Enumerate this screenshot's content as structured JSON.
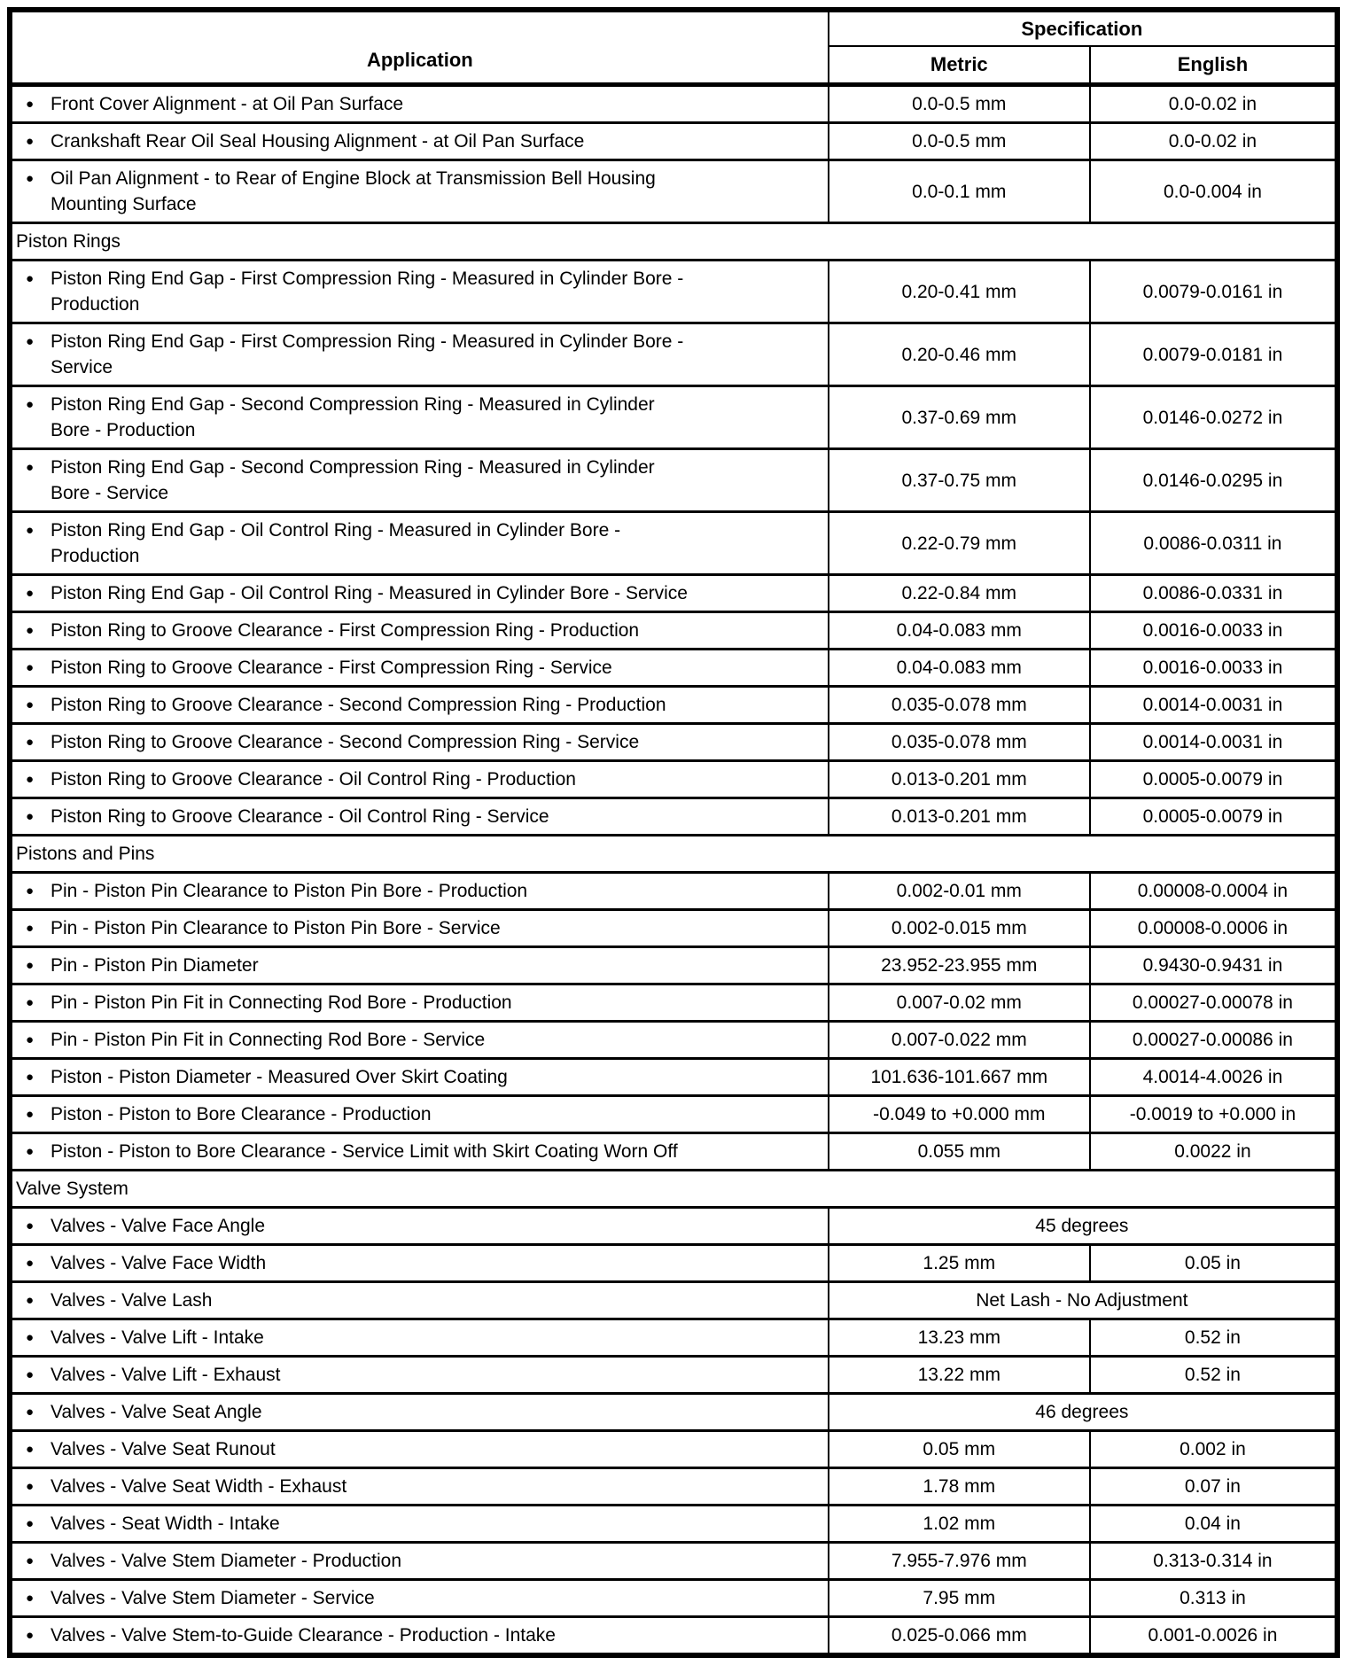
{
  "table": {
    "header": {
      "application": "Application",
      "specification": "Specification",
      "metric": "Metric",
      "english": "English"
    },
    "bullet_icon": "●",
    "rows": [
      {
        "type": "item",
        "label": "Front Cover Alignment - at Oil Pan Surface",
        "metric": "0.0-0.5 mm",
        "english": "0.0-0.02 in"
      },
      {
        "type": "item",
        "label": "Crankshaft Rear Oil Seal Housing Alignment - at Oil Pan Surface",
        "metric": "0.0-0.5 mm",
        "english": "0.0-0.02 in"
      },
      {
        "type": "item",
        "label": "Oil Pan Alignment - to Rear of Engine Block at Transmission Bell Housing\nMounting Surface",
        "metric": "0.0-0.1 mm",
        "english": "0.0-0.004 in"
      },
      {
        "type": "section",
        "label": "Piston Rings"
      },
      {
        "type": "item",
        "label": "Piston Ring End Gap - First Compression Ring - Measured in Cylinder Bore -\nProduction",
        "metric": "0.20-0.41 mm",
        "english": "0.0079-0.0161 in"
      },
      {
        "type": "item",
        "label": "Piston Ring End Gap - First Compression Ring - Measured in Cylinder Bore -\nService",
        "metric": "0.20-0.46 mm",
        "english": "0.0079-0.0181 in"
      },
      {
        "type": "item",
        "label": "Piston Ring End Gap - Second Compression Ring - Measured in Cylinder\nBore - Production",
        "metric": "0.37-0.69 mm",
        "english": "0.0146-0.0272 in"
      },
      {
        "type": "item",
        "label": "Piston Ring End Gap - Second Compression Ring - Measured in Cylinder\nBore - Service",
        "metric": "0.37-0.75 mm",
        "english": "0.0146-0.0295 in"
      },
      {
        "type": "item",
        "label": "Piston Ring End Gap - Oil Control Ring - Measured in Cylinder Bore -\nProduction",
        "metric": "0.22-0.79 mm",
        "english": "0.0086-0.0311 in"
      },
      {
        "type": "item",
        "label": "Piston Ring End Gap - Oil Control Ring - Measured in Cylinder Bore - Service",
        "metric": "0.22-0.84 mm",
        "english": "0.0086-0.0331 in"
      },
      {
        "type": "item",
        "label": "Piston Ring to Groove Clearance - First Compression Ring - Production",
        "metric": "0.04-0.083 mm",
        "english": "0.0016-0.0033 in"
      },
      {
        "type": "item",
        "label": "Piston Ring to Groove Clearance - First Compression Ring - Service",
        "metric": "0.04-0.083 mm",
        "english": "0.0016-0.0033 in"
      },
      {
        "type": "item",
        "label": "Piston Ring to Groove Clearance - Second Compression Ring - Production",
        "metric": "0.035-0.078 mm",
        "english": "0.0014-0.0031 in"
      },
      {
        "type": "item",
        "label": "Piston Ring to Groove Clearance - Second Compression Ring - Service",
        "metric": "0.035-0.078 mm",
        "english": "0.0014-0.0031 in"
      },
      {
        "type": "item",
        "label": "Piston Ring to Groove Clearance - Oil Control Ring - Production",
        "metric": "0.013-0.201 mm",
        "english": "0.0005-0.0079 in"
      },
      {
        "type": "item",
        "label": "Piston Ring to Groove Clearance - Oil Control Ring - Service",
        "metric": "0.013-0.201 mm",
        "english": "0.0005-0.0079 in"
      },
      {
        "type": "section",
        "label": "Pistons and Pins"
      },
      {
        "type": "item",
        "label": "Pin - Piston Pin Clearance to Piston Pin Bore - Production",
        "metric": "0.002-0.01 mm",
        "english": "0.00008-0.0004 in"
      },
      {
        "type": "item",
        "label": "Pin - Piston Pin Clearance to Piston Pin Bore - Service",
        "metric": "0.002-0.015 mm",
        "english": "0.00008-0.0006 in"
      },
      {
        "type": "item",
        "label": "Pin - Piston Pin Diameter",
        "metric": "23.952-23.955 mm",
        "english": "0.9430-0.9431 in"
      },
      {
        "type": "item",
        "label": "Pin - Piston Pin Fit in Connecting Rod Bore - Production",
        "metric": "0.007-0.02 mm",
        "english": "0.00027-0.00078 in"
      },
      {
        "type": "item",
        "label": "Pin - Piston Pin Fit in Connecting Rod Bore - Service",
        "metric": "0.007-0.022 mm",
        "english": "0.00027-0.00086 in"
      },
      {
        "type": "item",
        "label": "Piston - Piston Diameter - Measured Over Skirt Coating",
        "metric": "101.636-101.667 mm",
        "english": "4.0014-4.0026 in"
      },
      {
        "type": "item",
        "label": "Piston - Piston to Bore Clearance - Production",
        "metric": "-0.049 to +0.000 mm",
        "english": "-0.0019 to +0.000 in"
      },
      {
        "type": "item",
        "label": "Piston - Piston to Bore Clearance - Service Limit with Skirt Coating Worn Off",
        "metric": "0.055 mm",
        "english": "0.0022 in"
      },
      {
        "type": "section",
        "label": "Valve System"
      },
      {
        "type": "span",
        "label": "Valves - Valve Face Angle",
        "value": "45 degrees"
      },
      {
        "type": "item",
        "label": "Valves - Valve Face Width",
        "metric": "1.25 mm",
        "english": "0.05 in"
      },
      {
        "type": "span",
        "label": "Valves - Valve Lash",
        "value": "Net Lash - No Adjustment"
      },
      {
        "type": "item",
        "label": "Valves - Valve Lift - Intake",
        "metric": "13.23 mm",
        "english": "0.52 in"
      },
      {
        "type": "item",
        "label": "Valves - Valve Lift - Exhaust",
        "metric": "13.22 mm",
        "english": "0.52 in"
      },
      {
        "type": "span",
        "label": "Valves - Valve Seat Angle",
        "value": "46 degrees"
      },
      {
        "type": "item",
        "label": "Valves - Valve Seat Runout",
        "metric": "0.05 mm",
        "english": "0.002 in"
      },
      {
        "type": "item",
        "label": "Valves - Valve Seat Width - Exhaust",
        "metric": "1.78 mm",
        "english": "0.07 in"
      },
      {
        "type": "item",
        "label": "Valves - Seat Width - Intake",
        "metric": "1.02 mm",
        "english": "0.04 in"
      },
      {
        "type": "item",
        "label": "Valves - Valve Stem Diameter - Production",
        "metric": "7.955-7.976 mm",
        "english": "0.313-0.314 in"
      },
      {
        "type": "item",
        "label": "Valves - Valve Stem Diameter - Service",
        "metric": "7.95 mm",
        "english": "0.313 in"
      },
      {
        "type": "item",
        "label": "Valves - Valve Stem-to-Guide Clearance - Production - Intake",
        "metric": "0.025-0.066 mm",
        "english": "0.001-0.0026 in"
      }
    ]
  }
}
